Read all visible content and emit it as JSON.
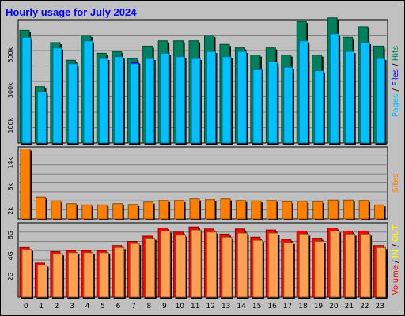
{
  "chart_data": {
    "type": "bar",
    "title": "Hourly usage for July 2024",
    "categories": [
      "0",
      "1",
      "2",
      "3",
      "4",
      "5",
      "6",
      "7",
      "8",
      "9",
      "10",
      "11",
      "12",
      "13",
      "14",
      "15",
      "16",
      "17",
      "18",
      "19",
      "20",
      "21",
      "22",
      "23"
    ],
    "panels": [
      {
        "name": "hits-files-pages",
        "ylabel_parts": [
          {
            "text": "Pages",
            "color": "#00c0ff"
          },
          {
            "text": " / ",
            "color": "#000000"
          },
          {
            "text": "Files",
            "color": "#0000ff"
          },
          {
            "text": " / ",
            "color": "#000000"
          },
          {
            "text": "Hits",
            "color": "#00805c"
          }
        ],
        "ylim": [
          0,
          700000
        ],
        "ticks": [
          {
            "value": 100000,
            "label": "100k"
          },
          {
            "value": 300000,
            "label": "300k"
          },
          {
            "value": 500000,
            "label": "500k"
          }
        ],
        "series": [
          {
            "name": "Hits",
            "color": "#00805c",
            "values": [
              640000,
              320000,
              570000,
              470000,
              610000,
              510000,
              520000,
              480000,
              550000,
              580000,
              580000,
              580000,
              610000,
              560000,
              540000,
              500000,
              540000,
              500000,
              690000,
              500000,
              710000,
              600000,
              660000,
              550000
            ]
          },
          {
            "name": "Files",
            "color": "#0000ff",
            "values": [
              400000,
              260000,
              380000,
              440000,
              420000,
              480000,
              460000,
              460000,
              470000,
              460000,
              470000,
              480000,
              460000,
              470000,
              440000,
              420000,
              440000,
              410000,
              470000,
              400000,
              470000,
              470000,
              470000,
              440000
            ]
          },
          {
            "name": "Pages",
            "color": "#00c0ff",
            "values": [
              600000,
              290000,
              540000,
              450000,
              580000,
              480000,
              490000,
              450000,
              480000,
              510000,
              490000,
              480000,
              520000,
              490000,
              520000,
              420000,
              460000,
              430000,
              580000,
              410000,
              620000,
              520000,
              570000,
              480000
            ]
          }
        ]
      },
      {
        "name": "sites",
        "ylabel_parts": [
          {
            "text": "Sites",
            "color": "#ff8000"
          }
        ],
        "ylim": [
          0,
          18000
        ],
        "ticks": [
          {
            "value": 2000,
            "label": "2k"
          },
          {
            "value": 8000,
            "label": "8k"
          },
          {
            "value": 14000,
            "label": "14k"
          }
        ],
        "series": [
          {
            "name": "Sites",
            "color": "#ff8000",
            "values": [
              17500,
              5500,
              4500,
              3800,
              3500,
              3500,
              3800,
              3600,
              4200,
              4600,
              4600,
              5000,
              4800,
              5000,
              4600,
              4500,
              4600,
              4300,
              4400,
              4300,
              4700,
              4700,
              4600,
              3500
            ]
          }
        ]
      },
      {
        "name": "volume",
        "ylabel_parts": [
          {
            "text": "Volume",
            "color": "#ff0000"
          },
          {
            "text": " / ",
            "color": "#000000"
          },
          {
            "text": "IN",
            "color": "#ffff00"
          },
          {
            "text": " / ",
            "color": "#000000"
          },
          {
            "text": "OUT",
            "color": "#ffff00"
          }
        ],
        "ylim": [
          0,
          7200000000
        ],
        "ticks": [
          {
            "value": 2000000000,
            "label": "2G"
          },
          {
            "value": 4000000000,
            "label": "4G"
          },
          {
            "value": 6000000000,
            "label": "6G"
          }
        ],
        "series": [
          {
            "name": "Volume",
            "color": "#ff0000",
            "values": [
              4800000000,
              3300000000,
              4400000000,
              4500000000,
              4500000000,
              4500000000,
              5000000000,
              5400000000,
              5900000000,
              6700000000,
              6300000000,
              6800000000,
              6600000000,
              6100000000,
              6600000000,
              5800000000,
              6500000000,
              5600000000,
              6400000000,
              5700000000,
              6700000000,
              6400000000,
              6400000000,
              5000000000
            ]
          },
          {
            "name": "OUT",
            "color": "#ffa050",
            "values": [
              4600000000,
              3100000000,
              4200000000,
              4300000000,
              4300000000,
              4300000000,
              4800000000,
              5200000000,
              5700000000,
              6400000000,
              6000000000,
              6500000000,
              6300000000,
              5800000000,
              6200000000,
              5500000000,
              6200000000,
              5300000000,
              6100000000,
              5400000000,
              6400000000,
              6100000000,
              6100000000,
              4800000000
            ]
          }
        ]
      }
    ]
  }
}
